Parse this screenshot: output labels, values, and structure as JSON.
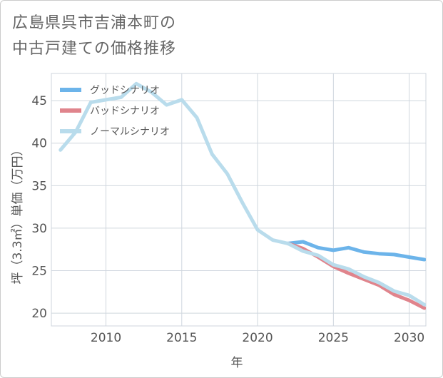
{
  "chart_data": {
    "type": "line",
    "title_lines": [
      "広島県呉市吉浦本町の",
      "中古戸建ての価格推移"
    ],
    "xlabel": "年",
    "ylabel": "坪（3.3㎡）単価（万円）",
    "xlim": [
      2006.4,
      2031.1
    ],
    "ylim": [
      18.5,
      48.2
    ],
    "xticks": [
      2010,
      2015,
      2020,
      2025,
      2030
    ],
    "yticks": [
      20,
      25,
      30,
      35,
      40,
      45
    ],
    "legend_position": "top-left",
    "series": [
      {
        "name": "グッドシナリオ",
        "color": "#6cb4ea",
        "x": [
          2022,
          2023,
          2024,
          2025,
          2026,
          2027,
          2028,
          2029,
          2030,
          2031
        ],
        "values": [
          28.2,
          28.4,
          27.7,
          27.4,
          27.7,
          27.2,
          27.0,
          26.9,
          26.6,
          26.3
        ]
      },
      {
        "name": "バッドシナリオ",
        "color": "#e0848c",
        "x": [
          2022,
          2023,
          2024,
          2025,
          2026,
          2027,
          2028,
          2029,
          2030,
          2031
        ],
        "values": [
          28.2,
          27.6,
          26.6,
          25.5,
          24.7,
          24.0,
          23.3,
          22.2,
          21.5,
          20.6
        ]
      },
      {
        "name": "ノーマルシナリオ",
        "color": "#b9dcec",
        "x": [
          2007,
          2008,
          2009,
          2010,
          2011,
          2012,
          2013,
          2014,
          2015,
          2016,
          2017,
          2018,
          2019,
          2020,
          2021,
          2022,
          2023,
          2024,
          2025,
          2026,
          2027,
          2028,
          2029,
          2030,
          2031
        ],
        "values": [
          39.2,
          41.3,
          44.8,
          45.1,
          45.4,
          47.0,
          46.0,
          44.5,
          45.1,
          43.0,
          38.7,
          36.4,
          33.0,
          29.8,
          28.6,
          28.2,
          27.3,
          26.8,
          25.7,
          25.2,
          24.3,
          23.6,
          22.6,
          22.1,
          21.0
        ]
      }
    ]
  }
}
